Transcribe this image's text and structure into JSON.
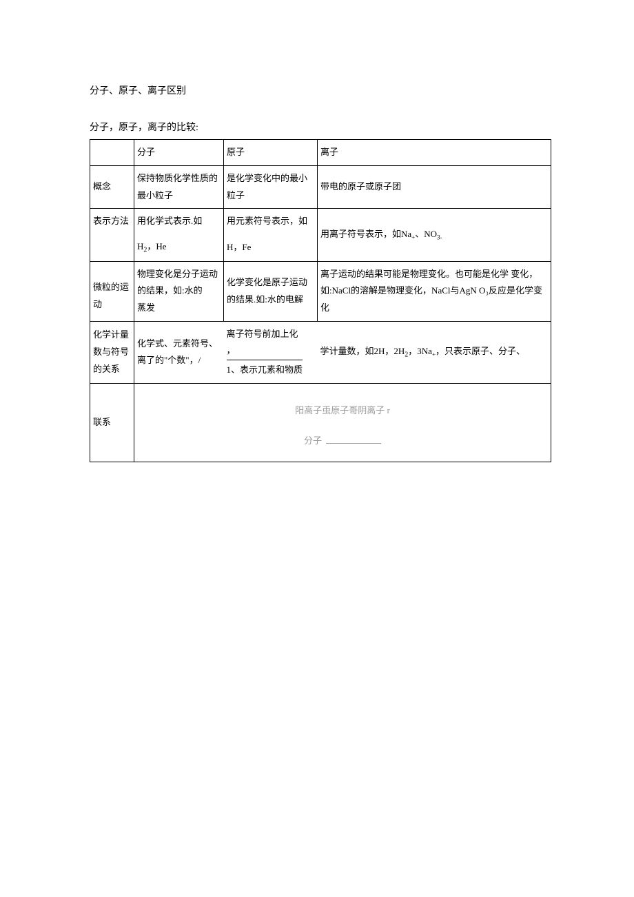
{
  "titles": {
    "main": "分子、原子、离子区别",
    "subtitle": "分子，原子，离子的比较:"
  },
  "header": {
    "col1": "分子",
    "col2": "原子",
    "col3": "离子"
  },
  "row1": {
    "label": "概念",
    "col1": "保持物质化学性质的最小粒子",
    "col2": "是化学变化中的最小粒子",
    "col3": "带电的原子或原子团"
  },
  "row2": {
    "label": "表示方法",
    "col1_pre": "用化学式表示.如",
    "col1_sub": "H",
    "col1_sub2": "，He",
    "col2_pre": "用元素符号表示，如",
    "col2_sub": "H，Fe",
    "col3_pre": "用离子符号表示，如Na",
    "col3_mid": "、NO",
    "col3_end": ""
  },
  "row3": {
    "label": "微粒的运动",
    "col1a": "物理变化是分子运动的结果，如:水的",
    "col1b": "蒸发",
    "col2": "化学变化是原子运动的结果.如:水的电解",
    "col3": "离子运动的结果可能是物理变化。也可能是化学 变化，如:NaCl的溶解是物理变化，NaCl与AgN O₃反应是化学变化"
  },
  "row4": {
    "label": "化学计量数与符号的关系",
    "col1": "化学式、元素符号、 离了的\"个数\"，/",
    "col2a": " 离子符号前加上化",
    "col2b": "，",
    "col2c": "1、表示兀素和物质",
    "col3a": "学计量数，如2H，2H",
    "col3b": "，3Na",
    "col3c": "，只表示原子、分子、"
  },
  "row5": {
    "label": "联系",
    "relation_line": "阳高子䖝原子哥阴离子 r",
    "molecule": "分子"
  },
  "style": {
    "background": "#ffffff",
    "text_color": "#000000",
    "border_color": "#000000",
    "faded_color": "#999999",
    "font_size_body": 14,
    "font_size_cell": 13
  }
}
